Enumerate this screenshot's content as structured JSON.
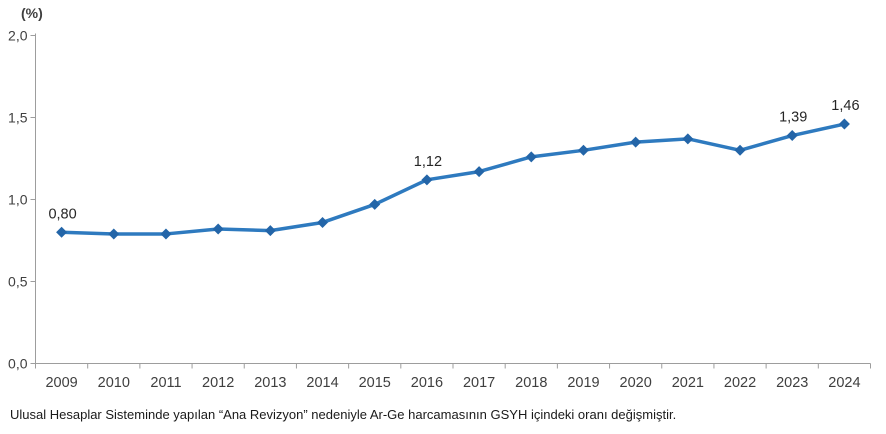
{
  "chart_data": {
    "type": "line",
    "title": "",
    "unit_label": "(%)",
    "xlabel": "",
    "ylabel": "(%)",
    "categories": [
      "2009",
      "2010",
      "2011",
      "2012",
      "2013",
      "2014",
      "2015",
      "2016",
      "2017",
      "2018",
      "2019",
      "2020",
      "2021",
      "2022",
      "2023",
      "2024"
    ],
    "series": [
      {
        "name": "Ar-Ge harcamasının GSYH içindeki oranı",
        "values": [
          0.8,
          0.79,
          0.79,
          0.82,
          0.81,
          0.86,
          0.97,
          1.12,
          1.17,
          1.26,
          1.3,
          1.35,
          1.37,
          1.3,
          1.39,
          1.46
        ]
      }
    ],
    "point_labels": [
      "0,80",
      "",
      "",
      "",
      "",
      "",
      "",
      "1,12",
      "",
      "",
      "",
      "",
      "",
      "",
      "1,39",
      "1,46"
    ],
    "ylim": [
      0.0,
      2.0
    ],
    "ytick_values": [
      0.0,
      0.5,
      1.0,
      1.5,
      2.0
    ],
    "ytick_labels": [
      "0,0",
      "0,5",
      "1,0",
      "1,5",
      "2,0"
    ],
    "grid": false,
    "legend_position": "none",
    "line_color": "#2e7abf",
    "marker_color": "#2365a8",
    "axis_color": "#9d9d9d",
    "text_color": "#3f3f3f"
  },
  "footnote": "Ulusal Hesaplar Sisteminde yapılan “Ana Revizyon” nedeniyle Ar-Ge harcamasının GSYH içindeki oranı değişmiştir."
}
